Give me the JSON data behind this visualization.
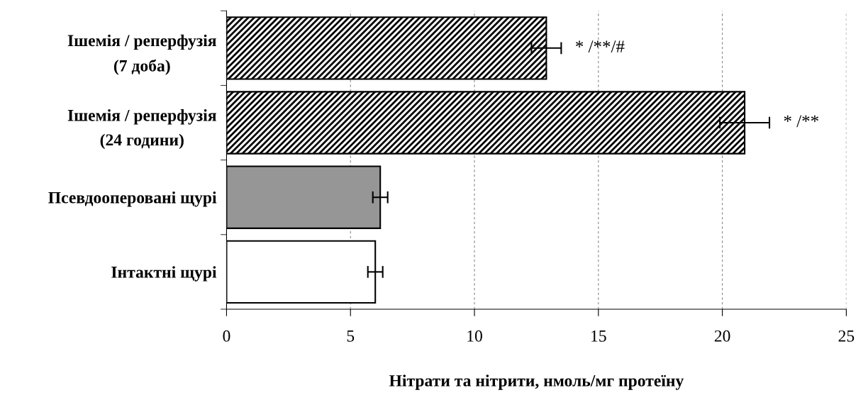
{
  "chart_data": {
    "type": "bar",
    "orientation": "horizontal",
    "categories": [
      "Ішемія / реперфузія\n(7 доба)",
      "Ішемія / реперфузія\n(24 години)",
      "Псевдооперовані щурі",
      "Інтактні щурі"
    ],
    "values": [
      12.9,
      20.9,
      6.2,
      6.0
    ],
    "errors": [
      0.6,
      1.0,
      0.3,
      0.3
    ],
    "colors": [
      "#000000",
      "#000000",
      "#969696",
      "#ffffff"
    ],
    "xlabel": "Нітрати та нітрити, нмоль/мг протеїну",
    "xlim": [
      0,
      25
    ],
    "xticks": [
      0,
      5,
      10,
      15,
      20,
      25
    ],
    "grid": "x",
    "annotations": [
      "* /**/#",
      "* /**"
    ]
  }
}
